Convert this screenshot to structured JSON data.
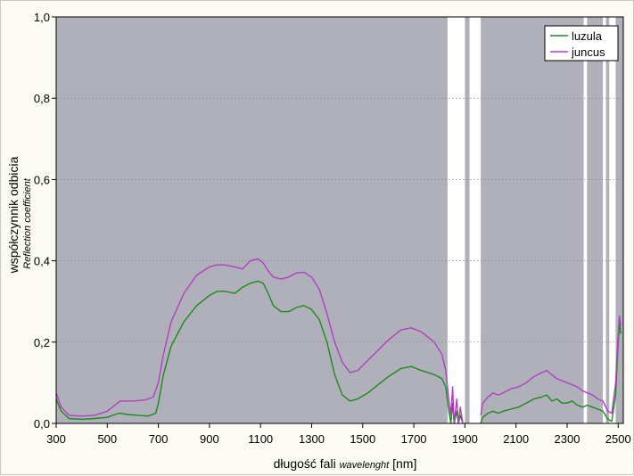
{
  "chart_data": {
    "type": "line",
    "xlabel": "długość fali",
    "xlabel_italic": "wavelenght",
    "xlabel_unit": "[nm]",
    "ylabel": "współczynnik odbicia",
    "ylabel_italic": "Reflection coefficient",
    "xlim": [
      300,
      2520
    ],
    "ylim": [
      0,
      1.0
    ],
    "x_ticks": [
      300,
      500,
      700,
      900,
      1100,
      1300,
      1500,
      1700,
      1900,
      2100,
      2300,
      2500
    ],
    "y_ticks": [
      0,
      0.2,
      0.4,
      0.6,
      0.8,
      1.0
    ],
    "y_tick_labels": [
      "0,0",
      "0,2",
      "0,4",
      "0,6",
      "0,8",
      "1,0"
    ],
    "legend_position": "top-right",
    "background_color": "#b0b0ba",
    "gap_color": "#ffffff",
    "gaps": [
      [
        1832,
        1900
      ],
      [
        1918,
        1962
      ],
      [
        2365,
        2378
      ],
      [
        2440,
        2452
      ],
      [
        2465,
        2490
      ]
    ],
    "series": [
      {
        "name": "luzula",
        "color": "#1e8a1e",
        "segments": [
          [
            [
              300,
              0.06
            ],
            [
              320,
              0.03
            ],
            [
              350,
              0.012
            ],
            [
              400,
              0.01
            ],
            [
              450,
              0.012
            ],
            [
              500,
              0.015
            ],
            [
              530,
              0.022
            ],
            [
              550,
              0.025
            ],
            [
              580,
              0.022
            ],
            [
              620,
              0.02
            ],
            [
              660,
              0.018
            ],
            [
              690,
              0.025
            ],
            [
              700,
              0.05
            ],
            [
              720,
              0.12
            ],
            [
              750,
              0.19
            ],
            [
              800,
              0.25
            ],
            [
              850,
              0.29
            ],
            [
              900,
              0.315
            ],
            [
              930,
              0.325
            ],
            [
              960,
              0.325
            ],
            [
              1000,
              0.32
            ],
            [
              1030,
              0.335
            ],
            [
              1060,
              0.345
            ],
            [
              1090,
              0.35
            ],
            [
              1110,
              0.345
            ],
            [
              1130,
              0.32
            ],
            [
              1150,
              0.29
            ],
            [
              1180,
              0.275
            ],
            [
              1210,
              0.275
            ],
            [
              1240,
              0.285
            ],
            [
              1270,
              0.29
            ],
            [
              1300,
              0.28
            ],
            [
              1330,
              0.255
            ],
            [
              1360,
              0.2
            ],
            [
              1390,
              0.12
            ],
            [
              1420,
              0.07
            ],
            [
              1450,
              0.055
            ],
            [
              1480,
              0.06
            ],
            [
              1520,
              0.075
            ],
            [
              1560,
              0.095
            ],
            [
              1600,
              0.115
            ],
            [
              1650,
              0.135
            ],
            [
              1690,
              0.14
            ],
            [
              1730,
              0.13
            ],
            [
              1780,
              0.12
            ],
            [
              1810,
              0.11
            ],
            [
              1825,
              0.09
            ],
            [
              1835,
              0.04
            ],
            [
              1845,
              0.0
            ],
            [
              1852,
              0.05
            ],
            [
              1858,
              0.0
            ],
            [
              1868,
              0.03
            ],
            [
              1875,
              0.0
            ],
            [
              1882,
              0.02
            ],
            [
              1892,
              0.0
            ]
          ],
          [
            [
              1962,
              0.0
            ],
            [
              1970,
              0.015
            ],
            [
              1990,
              0.025
            ],
            [
              2010,
              0.03
            ],
            [
              2030,
              0.025
            ],
            [
              2050,
              0.03
            ],
            [
              2080,
              0.035
            ],
            [
              2110,
              0.04
            ],
            [
              2140,
              0.05
            ],
            [
              2170,
              0.06
            ],
            [
              2200,
              0.065
            ],
            [
              2220,
              0.07
            ],
            [
              2240,
              0.055
            ],
            [
              2260,
              0.06
            ],
            [
              2280,
              0.05
            ],
            [
              2300,
              0.05
            ],
            [
              2320,
              0.055
            ],
            [
              2340,
              0.045
            ],
            [
              2360,
              0.04
            ],
            [
              2380,
              0.045
            ],
            [
              2400,
              0.04
            ],
            [
              2420,
              0.035
            ],
            [
              2440,
              0.03
            ],
            [
              2460,
              0.01
            ],
            [
              2475,
              0.005
            ],
            [
              2490,
              0.07
            ],
            [
              2500,
              0.2
            ],
            [
              2505,
              0.25
            ],
            [
              2510,
              0.22
            ]
          ]
        ]
      },
      {
        "name": "juncus",
        "color": "#b040c0",
        "segments": [
          [
            [
              300,
              0.075
            ],
            [
              320,
              0.04
            ],
            [
              350,
              0.02
            ],
            [
              400,
              0.018
            ],
            [
              450,
              0.02
            ],
            [
              500,
              0.03
            ],
            [
              530,
              0.045
            ],
            [
              550,
              0.055
            ],
            [
              600,
              0.055
            ],
            [
              650,
              0.058
            ],
            [
              680,
              0.065
            ],
            [
              700,
              0.1
            ],
            [
              720,
              0.17
            ],
            [
              750,
              0.25
            ],
            [
              800,
              0.32
            ],
            [
              850,
              0.365
            ],
            [
              900,
              0.385
            ],
            [
              930,
              0.39
            ],
            [
              960,
              0.39
            ],
            [
              1000,
              0.385
            ],
            [
              1030,
              0.38
            ],
            [
              1060,
              0.4
            ],
            [
              1090,
              0.405
            ],
            [
              1110,
              0.395
            ],
            [
              1130,
              0.375
            ],
            [
              1150,
              0.36
            ],
            [
              1180,
              0.355
            ],
            [
              1210,
              0.36
            ],
            [
              1240,
              0.37
            ],
            [
              1270,
              0.372
            ],
            [
              1300,
              0.36
            ],
            [
              1330,
              0.33
            ],
            [
              1360,
              0.27
            ],
            [
              1390,
              0.2
            ],
            [
              1420,
              0.15
            ],
            [
              1450,
              0.125
            ],
            [
              1480,
              0.13
            ],
            [
              1520,
              0.155
            ],
            [
              1560,
              0.18
            ],
            [
              1600,
              0.205
            ],
            [
              1650,
              0.23
            ],
            [
              1690,
              0.235
            ],
            [
              1730,
              0.225
            ],
            [
              1780,
              0.2
            ],
            [
              1810,
              0.17
            ],
            [
              1825,
              0.13
            ],
            [
              1835,
              0.07
            ],
            [
              1845,
              0.02
            ],
            [
              1852,
              0.09
            ],
            [
              1858,
              0.0
            ],
            [
              1868,
              0.06
            ],
            [
              1875,
              0.0
            ],
            [
              1882,
              0.04
            ],
            [
              1892,
              0.0
            ]
          ],
          [
            [
              1962,
              0.02
            ],
            [
              1970,
              0.05
            ],
            [
              1990,
              0.065
            ],
            [
              2010,
              0.075
            ],
            [
              2030,
              0.07
            ],
            [
              2050,
              0.075
            ],
            [
              2080,
              0.085
            ],
            [
              2110,
              0.09
            ],
            [
              2140,
              0.1
            ],
            [
              2170,
              0.115
            ],
            [
              2200,
              0.125
            ],
            [
              2220,
              0.13
            ],
            [
              2240,
              0.12
            ],
            [
              2260,
              0.11
            ],
            [
              2280,
              0.105
            ],
            [
              2300,
              0.1
            ],
            [
              2320,
              0.095
            ],
            [
              2340,
              0.09
            ],
            [
              2360,
              0.08
            ],
            [
              2380,
              0.075
            ],
            [
              2400,
              0.07
            ],
            [
              2420,
              0.06
            ],
            [
              2440,
              0.055
            ],
            [
              2460,
              0.03
            ],
            [
              2475,
              0.025
            ],
            [
              2490,
              0.1
            ],
            [
              2500,
              0.22
            ],
            [
              2505,
              0.265
            ],
            [
              2510,
              0.24
            ]
          ]
        ]
      }
    ]
  }
}
